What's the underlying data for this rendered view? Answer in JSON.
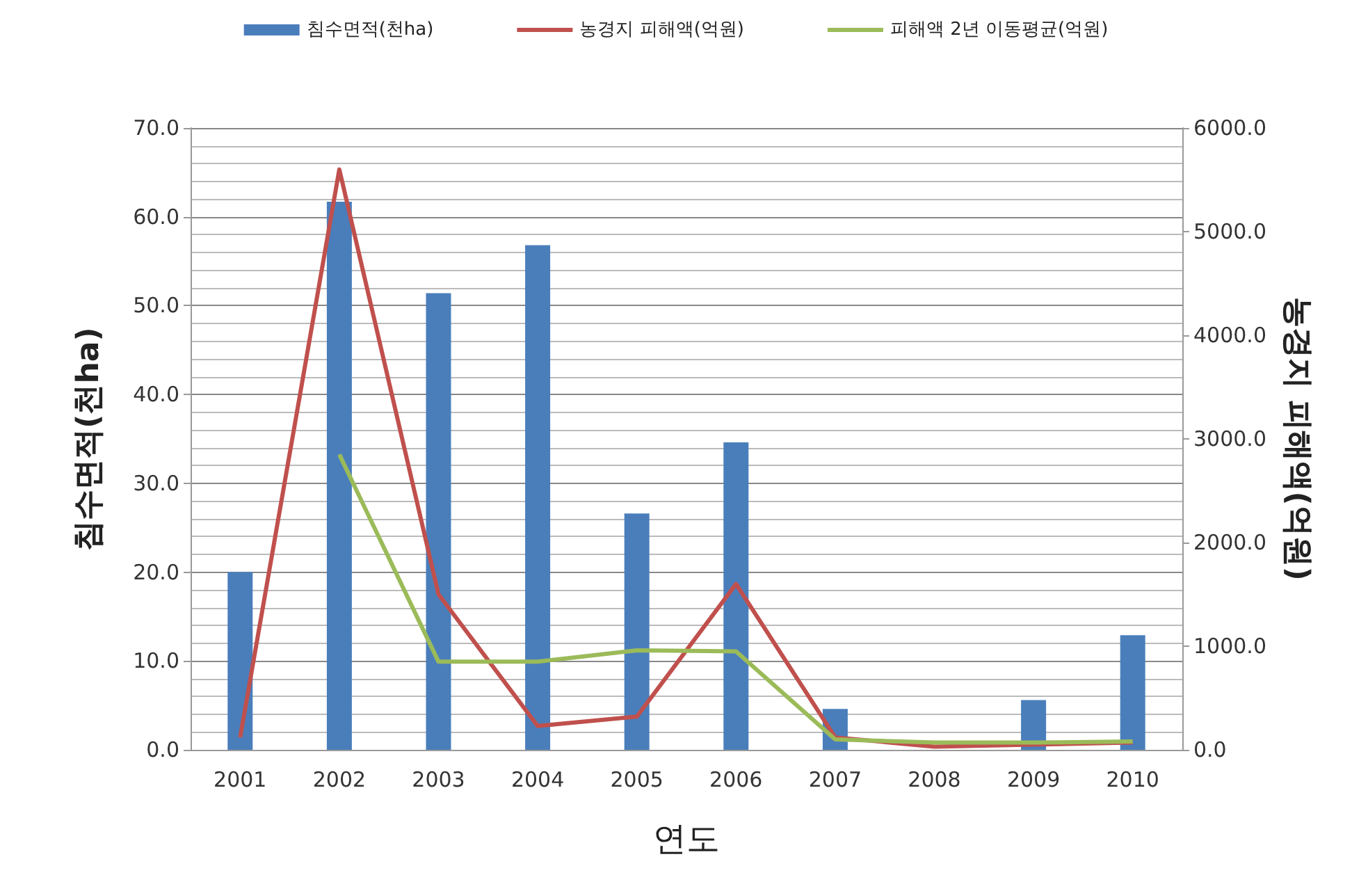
{
  "chart_data": {
    "type": "bar",
    "xlabel": "연도",
    "ylabel": "침수면적(천ha)",
    "y2label": "농경지 피해액(억원)",
    "categories": [
      "2001",
      "2002",
      "2003",
      "2004",
      "2005",
      "2006",
      "2007",
      "2008",
      "2009",
      "2010"
    ],
    "series": [
      {
        "name": "침수면적(천ha)",
        "color": "#4a7ebb",
        "values": [
          20.0,
          61.7,
          51.4,
          56.8,
          26.6,
          34.6,
          4.6,
          0,
          5.6,
          12.9
        ]
      },
      {
        "name": "농경지 피해액(억원)",
        "type": "line",
        "axis": "y2",
        "color": "#c0504d",
        "values": [
          120,
          5600,
          1500,
          230,
          320,
          1600,
          120,
          30,
          50,
          70
        ]
      },
      {
        "name": "피해액 2년 이동평균(억원)",
        "type": "line",
        "axis": "y2",
        "color": "#9bbb59",
        "values": [
          null,
          2850,
          850,
          850,
          960,
          950,
          100,
          70,
          70,
          80
        ]
      }
    ],
    "ylim": [
      0,
      70
    ],
    "yticks": [
      {
        "value": 0,
        "label": "0.0"
      },
      {
        "value": 10,
        "label": "10.0"
      },
      {
        "value": 20,
        "label": "20.0"
      },
      {
        "value": 30,
        "label": "30.0"
      },
      {
        "value": 40,
        "label": "40.0"
      },
      {
        "value": 50,
        "label": "50.0"
      },
      {
        "value": 60,
        "label": "60.0"
      },
      {
        "value": 70,
        "label": "70.0"
      }
    ],
    "y2lim": [
      0,
      6000
    ],
    "y2ticks": [
      {
        "value": 0,
        "label": "0.0"
      },
      {
        "value": 1000,
        "label": "1000.0"
      },
      {
        "value": 2000,
        "label": "2000.0"
      },
      {
        "value": 3000,
        "label": "3000.0"
      },
      {
        "value": 4000,
        "label": "4000.0"
      },
      {
        "value": 5000,
        "label": "5000.0"
      },
      {
        "value": 6000,
        "label": "6000.0"
      }
    ],
    "grid": "y",
    "legend": "top",
    "marker": "none"
  }
}
